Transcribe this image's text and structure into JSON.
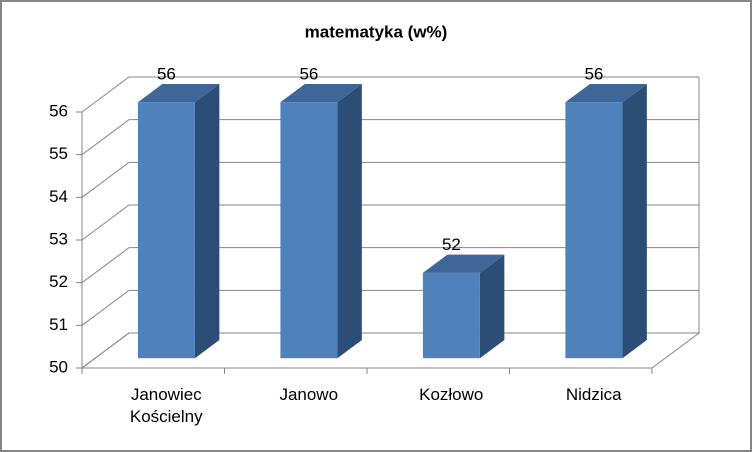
{
  "chart_data": {
    "type": "bar3d",
    "title": "matematyka (w%)",
    "categories": [
      "Janowiec Kościelny",
      "Janowo",
      "Kozłowo",
      "Nidzica"
    ],
    "values": [
      56,
      56,
      52,
      56
    ],
    "color": "#4f81bd",
    "ylim": [
      50,
      56
    ],
    "yticks": [
      50,
      51,
      52,
      53,
      54,
      55,
      56
    ],
    "grid": true
  }
}
